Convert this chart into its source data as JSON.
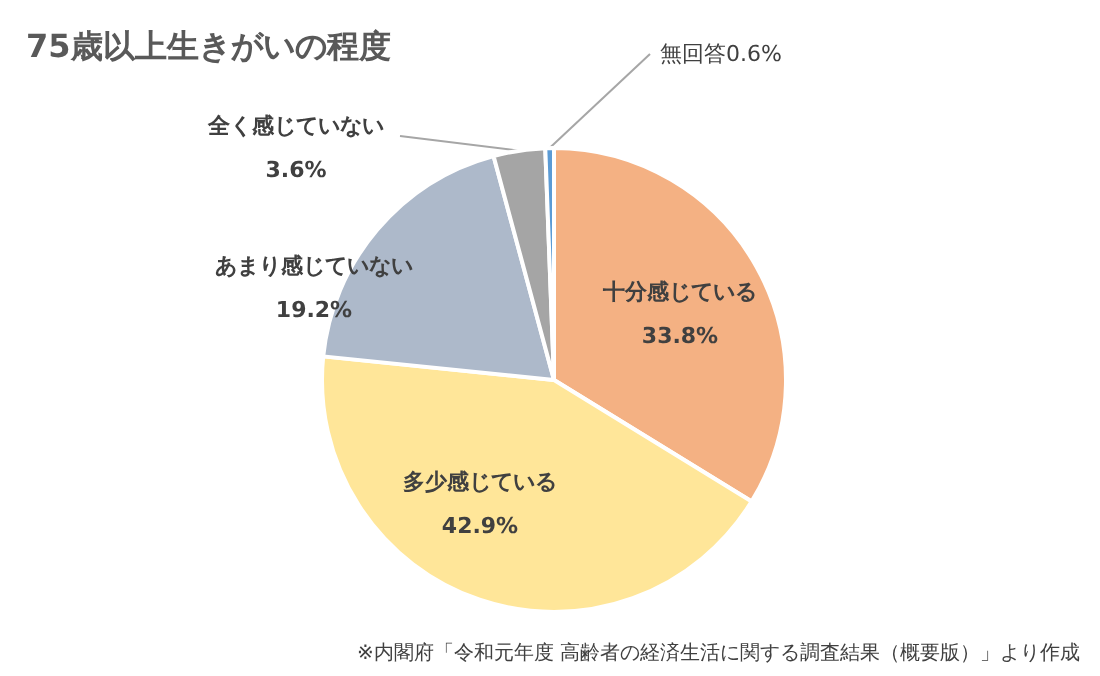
{
  "chart_data": {
    "type": "pie",
    "title": "75歳以上生きがいの程度",
    "categories": [
      "十分感じている",
      "多少感じている",
      "あまり感じていない",
      "全く感じていない",
      "無回答"
    ],
    "values": [
      33.8,
      42.9,
      19.2,
      3.6,
      0.6
    ],
    "value_labels": [
      "33.8%",
      "42.9%",
      "19.2%",
      "3.6%",
      "0.6%"
    ],
    "colors": [
      "#f4b183",
      "#ffe699",
      "#adb9ca",
      "#a5a5a5",
      "#5b9bd5"
    ],
    "annotations": [
      "※内閣府「令和元年度 高齢者の経済生活に関する調査結果（概要版）」より作成"
    ]
  }
}
